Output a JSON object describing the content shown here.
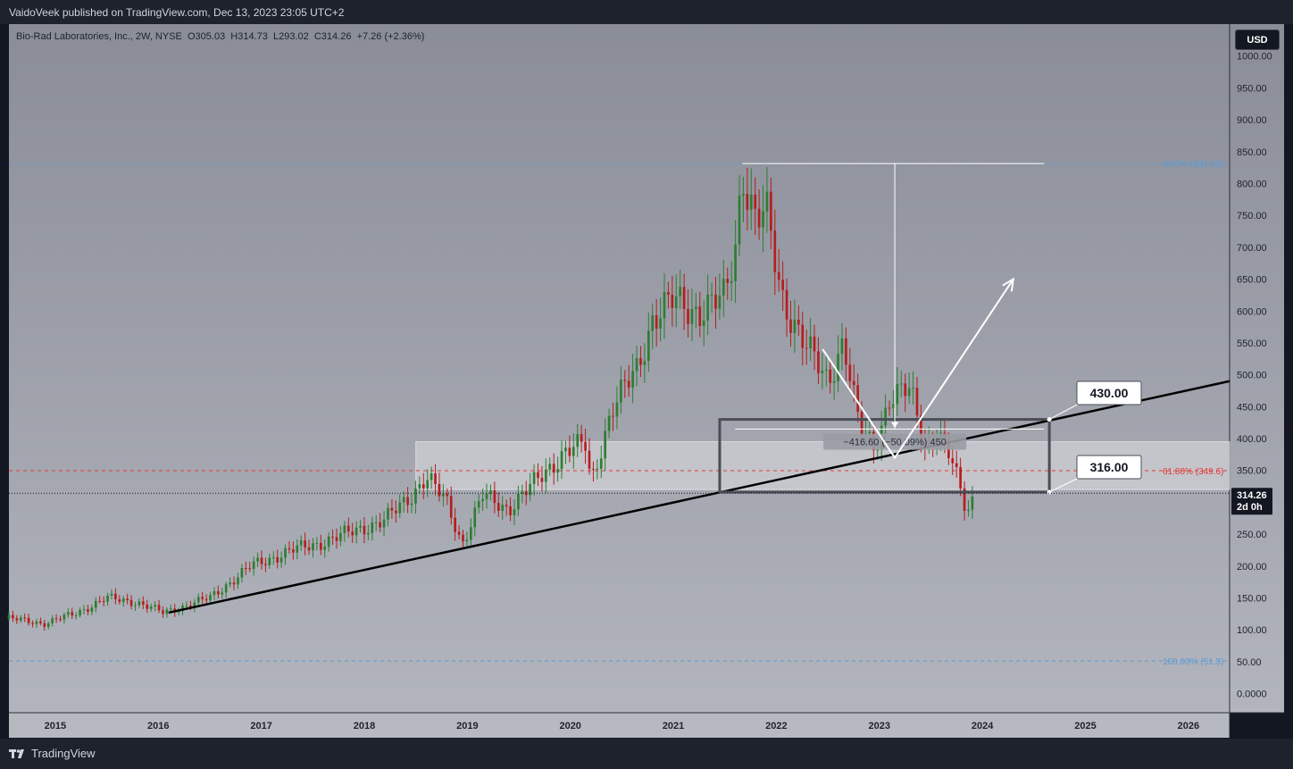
{
  "header": {
    "published_text": "VaidoVeek published on TradingView.com, Dec 13, 2023 23:05 UTC+2"
  },
  "symbol": {
    "info_line": "Bio-Rad Laboratories, Inc., 2W, NYSE  O305.03  H314.73  L293.02  C314.26  +7.26 (+2.36%)"
  },
  "currency_button": "USD",
  "footer": {
    "brand": "TradingView"
  },
  "colors": {
    "plot_bg_top": "#8a8d98",
    "plot_bg_bottom": "#b2b5bd",
    "bull": "#2e7d32",
    "bear": "#b71c1c",
    "fib_blue": "#5b9bd5",
    "fib_red": "#e53935",
    "trendline": "#000000",
    "annotation": "#ffffff"
  },
  "chart_data": {
    "type": "candlestick",
    "interval": "2W",
    "y_scale": "linear",
    "ylim": [
      -30,
      1050
    ],
    "y_ticks": [
      0,
      50,
      100,
      150,
      200,
      250,
      300,
      350,
      400,
      450,
      500,
      550,
      600,
      650,
      700,
      750,
      800,
      850,
      900,
      950,
      1000
    ],
    "y_tick_labels": [
      "0.0000",
      "50.00",
      "100.00",
      "150.00",
      "200.00",
      "250.00",
      "300.00",
      "350.00",
      "400.00",
      "450.00",
      "500.00",
      "550.00",
      "600.00",
      "650.00",
      "700.00",
      "750.00",
      "800.00",
      "850.00",
      "900.00",
      "950.00",
      "1000.00"
    ],
    "x_range": [
      2014.55,
      2026.4
    ],
    "x_ticks": [
      2015,
      2016,
      2017,
      2018,
      2019,
      2020,
      2021,
      2022,
      2023,
      2024,
      2025,
      2026
    ],
    "x_tick_labels": [
      "2015",
      "2016",
      "2017",
      "2018",
      "2019",
      "2020",
      "2021",
      "2022",
      "2023",
      "2024",
      "2025",
      "2026"
    ],
    "price_path": [
      [
        2014.55,
        118
      ],
      [
        2014.9,
        110
      ],
      [
        2015.2,
        126
      ],
      [
        2015.5,
        150
      ],
      [
        2015.8,
        143
      ],
      [
        2016.0,
        130
      ],
      [
        2016.05,
        127
      ],
      [
        2016.5,
        150
      ],
      [
        2016.9,
        200
      ],
      [
        2017.3,
        225
      ],
      [
        2017.55,
        235
      ],
      [
        2017.9,
        255
      ],
      [
        2018.2,
        272
      ],
      [
        2018.45,
        310
      ],
      [
        2018.6,
        340
      ],
      [
        2018.8,
        300
      ],
      [
        2018.95,
        235
      ],
      [
        2019.15,
        310
      ],
      [
        2019.4,
        290
      ],
      [
        2019.65,
        330
      ],
      [
        2019.95,
        380
      ],
      [
        2020.15,
        390
      ],
      [
        2020.2,
        330
      ],
      [
        2020.4,
        445
      ],
      [
        2020.65,
        510
      ],
      [
        2020.8,
        590
      ],
      [
        2021.0,
        615
      ],
      [
        2021.25,
        600
      ],
      [
        2021.5,
        620
      ],
      [
        2021.6,
        700
      ],
      [
        2021.67,
        822
      ],
      [
        2021.8,
        740
      ],
      [
        2021.9,
        755
      ],
      [
        2022.05,
        625
      ],
      [
        2022.3,
        540
      ],
      [
        2022.5,
        490
      ],
      [
        2022.65,
        555
      ],
      [
        2022.8,
        420
      ],
      [
        2022.95,
        385
      ],
      [
        2023.1,
        465
      ],
      [
        2023.3,
        475
      ],
      [
        2023.45,
        385
      ],
      [
        2023.55,
        415
      ],
      [
        2023.7,
        365
      ],
      [
        2023.8,
        310
      ],
      [
        2023.85,
        285
      ],
      [
        2023.93,
        314.26
      ]
    ],
    "last_price": 314.26,
    "last_price_label": "314.26",
    "countdown_label": "2d 0h",
    "fib_levels": [
      {
        "ratio_label": "0.00% (831.35)",
        "price": 831.35
      },
      {
        "ratio_label": "61.80% (349.6)",
        "price": 349.6
      },
      {
        "ratio_label": "100.00% (51.3)",
        "price": 51.3
      }
    ],
    "trendline": {
      "from": {
        "x": 2016.1,
        "price": 127
      },
      "to": {
        "x": 2026.4,
        "price": 490
      }
    },
    "zone": {
      "x_from": 2018.5,
      "x_to": 2026.4,
      "price_low": 320,
      "price_high": 395
    },
    "box": {
      "x_from": 2021.45,
      "x_to": 2024.65,
      "price_low": 316,
      "price_high": 430
    },
    "callouts": [
      {
        "text": "430.00",
        "price": 430
      },
      {
        "text": "316.00",
        "price": 316
      }
    ],
    "measure": {
      "x": 2023.15,
      "price_top": 831.35,
      "price_bottom": 415,
      "label": "−416.60 (−50.09%) 450"
    },
    "projection": [
      [
        2022.45,
        540
      ],
      [
        2023.15,
        370
      ],
      [
        2024.3,
        650
      ]
    ]
  }
}
